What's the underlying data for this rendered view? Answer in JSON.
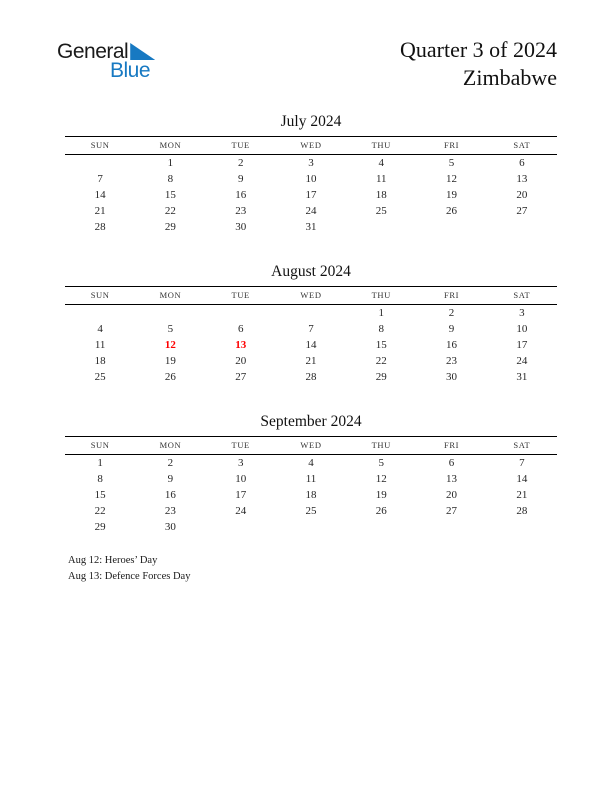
{
  "logo": {
    "text_top": "General",
    "text_bottom": "Blue",
    "accent_color": "#1779c2"
  },
  "header": {
    "title_line1": "Quarter 3 of 2024",
    "title_line2": "Zimbabwe"
  },
  "calendar": {
    "weekday_headers": [
      "SUN",
      "MON",
      "TUE",
      "WED",
      "THU",
      "FRI",
      "SAT"
    ],
    "holiday_color": "#fe0000",
    "months": [
      {
        "name": "July 2024",
        "weeks": [
          [
            "",
            "1",
            "2",
            "3",
            "4",
            "5",
            "6"
          ],
          [
            "7",
            "8",
            "9",
            "10",
            "11",
            "12",
            "13"
          ],
          [
            "14",
            "15",
            "16",
            "17",
            "18",
            "19",
            "20"
          ],
          [
            "21",
            "22",
            "23",
            "24",
            "25",
            "26",
            "27"
          ],
          [
            "28",
            "29",
            "30",
            "31",
            "",
            "",
            ""
          ]
        ],
        "holidays": []
      },
      {
        "name": "August 2024",
        "weeks": [
          [
            "",
            "",
            "",
            "",
            "1",
            "2",
            "3"
          ],
          [
            "4",
            "5",
            "6",
            "7",
            "8",
            "9",
            "10"
          ],
          [
            "11",
            "12",
            "13",
            "14",
            "15",
            "16",
            "17"
          ],
          [
            "18",
            "19",
            "20",
            "21",
            "22",
            "23",
            "24"
          ],
          [
            "25",
            "26",
            "27",
            "28",
            "29",
            "30",
            "31"
          ]
        ],
        "holidays": [
          "12",
          "13"
        ]
      },
      {
        "name": "September 2024",
        "weeks": [
          [
            "1",
            "2",
            "3",
            "4",
            "5",
            "6",
            "7"
          ],
          [
            "8",
            "9",
            "10",
            "11",
            "12",
            "13",
            "14"
          ],
          [
            "15",
            "16",
            "17",
            "18",
            "19",
            "20",
            "21"
          ],
          [
            "22",
            "23",
            "24",
            "25",
            "26",
            "27",
            "28"
          ],
          [
            "29",
            "30",
            "",
            "",
            "",
            "",
            ""
          ]
        ],
        "holidays": []
      }
    ]
  },
  "footnotes": [
    "Aug 12: Heroes’ Day",
    "Aug 13: Defence Forces Day"
  ]
}
